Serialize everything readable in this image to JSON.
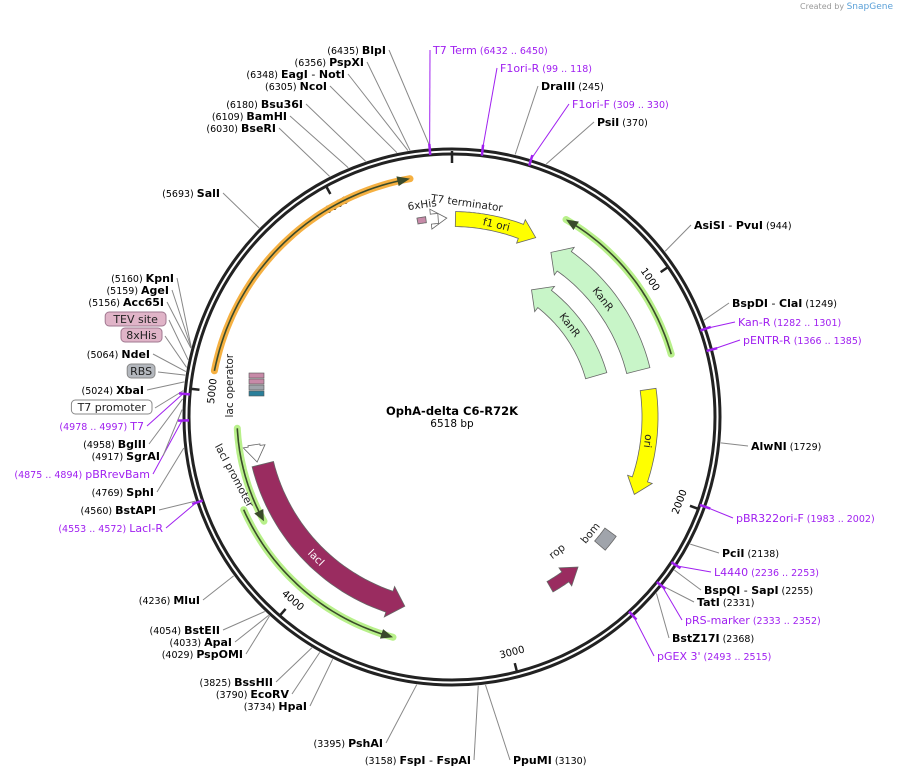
{
  "credit": {
    "prefix": "Created by",
    "brand": "SnapGene"
  },
  "plasmid": {
    "name": "OphA-delta C6-R72K",
    "length_label": "6518 bp",
    "length_bp": 6518
  },
  "colors": {
    "backbone": "#222222",
    "primer": "#a020f0",
    "orange": "#f5b041",
    "green_hl": "#b8f08a",
    "yellow": "#ffff00",
    "kanr": "#c8f5c8",
    "maroon": "#9a2c60",
    "grey": "#a0a4ab"
  },
  "ticks": [
    "1000",
    "2000",
    "3000",
    "4000",
    "5000",
    "6000"
  ],
  "labels": [
    {
      "kind": "site",
      "names": [
        "BlpI"
      ],
      "pos": "(6435)",
      "bp": 6435
    },
    {
      "kind": "primer",
      "name": "T7 Term",
      "range": "(6432 .. 6450)",
      "bp": 6432
    },
    {
      "kind": "site",
      "names": [
        "PspXI"
      ],
      "pos": "(6356)",
      "bp": 6356
    },
    {
      "kind": "site",
      "names": [
        "EagI",
        "NotI"
      ],
      "pos": "(6348)",
      "bp": 6348
    },
    {
      "kind": "site",
      "names": [
        "NcoI"
      ],
      "pos": "(6305)",
      "bp": 6305
    },
    {
      "kind": "primer",
      "name": "F1ori-R",
      "range": "(99 .. 118)",
      "bp": 118
    },
    {
      "kind": "site",
      "names": [
        "DraIII"
      ],
      "pos": "(245)",
      "bp": 245
    },
    {
      "kind": "primer",
      "name": "F1ori-F",
      "range": "(309 .. 330)",
      "bp": 309
    },
    {
      "kind": "site",
      "names": [
        "PsiI"
      ],
      "pos": "(370)",
      "bp": 370
    },
    {
      "kind": "site",
      "names": [
        "Bsu36I"
      ],
      "pos": "(6180)",
      "bp": 6180
    },
    {
      "kind": "site",
      "names": [
        "BamHI"
      ],
      "pos": "(6109)",
      "bp": 6109
    },
    {
      "kind": "site",
      "names": [
        "BseRI"
      ],
      "pos": "(6030)",
      "bp": 6030
    },
    {
      "kind": "site",
      "names": [
        "SalI"
      ],
      "pos": "(5693)",
      "bp": 5693
    },
    {
      "kind": "site",
      "names": [
        "AsiSI",
        "PvuI"
      ],
      "pos": "(944)",
      "bp": 944
    },
    {
      "kind": "site",
      "names": [
        "BspDI",
        "ClaI"
      ],
      "pos": "(1249)",
      "bp": 1249
    },
    {
      "kind": "primer",
      "name": "Kan-R",
      "range": "(1282 .. 1301)",
      "bp": 1282
    },
    {
      "kind": "primer",
      "name": "pENTR-R",
      "range": "(1366 .. 1385)",
      "bp": 1366
    },
    {
      "kind": "site",
      "names": [
        "AlwNI"
      ],
      "pos": "(1729)",
      "bp": 1729
    },
    {
      "kind": "primer",
      "name": "pBR322ori-F",
      "range": "(1983 .. 2002)",
      "bp": 1983
    },
    {
      "kind": "site",
      "names": [
        "PciI"
      ],
      "pos": "(2138)",
      "bp": 2138
    },
    {
      "kind": "primer",
      "name": "L4440",
      "range": "(2236 .. 2253)",
      "bp": 2236
    },
    {
      "kind": "site",
      "names": [
        "BspQI",
        "SapI"
      ],
      "pos": "(2255)",
      "bp": 2255
    },
    {
      "kind": "site",
      "names": [
        "TatI"
      ],
      "pos": "(2331)",
      "bp": 2331
    },
    {
      "kind": "primer",
      "name": "pRS-marker",
      "range": "(2333 .. 2352)",
      "bp": 2333
    },
    {
      "kind": "site",
      "names": [
        "BstZ17I"
      ],
      "pos": "(2368)",
      "bp": 2368
    },
    {
      "kind": "primer",
      "name": "pGEX 3'",
      "range": "(2493 .. 2515)",
      "bp": 2493
    },
    {
      "kind": "site",
      "names": [
        "PpuMI"
      ],
      "pos": "(3130)",
      "bp": 3130
    },
    {
      "kind": "site",
      "names": [
        "FspI",
        "FspAI"
      ],
      "pos": "(3158)",
      "bp": 3158
    },
    {
      "kind": "site",
      "names": [
        "PshAI"
      ],
      "pos": "(3395)",
      "bp": 3395
    },
    {
      "kind": "site",
      "names": [
        "HpaI"
      ],
      "pos": "(3734)",
      "bp": 3734
    },
    {
      "kind": "site",
      "names": [
        "EcoRV"
      ],
      "pos": "(3790)",
      "bp": 3790
    },
    {
      "kind": "site",
      "names": [
        "BssHII"
      ],
      "pos": "(3825)",
      "bp": 3825
    },
    {
      "kind": "site",
      "names": [
        "PspOMI"
      ],
      "pos": "(4029)",
      "bp": 4029
    },
    {
      "kind": "site",
      "names": [
        "ApaI"
      ],
      "pos": "(4033)",
      "bp": 4033
    },
    {
      "kind": "site",
      "names": [
        "BstEII"
      ],
      "pos": "(4054)",
      "bp": 4054
    },
    {
      "kind": "site",
      "names": [
        "MluI"
      ],
      "pos": "(4236)",
      "bp": 4236
    },
    {
      "kind": "primer",
      "name": "LacI-R",
      "range": "(4553 .. 4572)",
      "bp": 4553
    },
    {
      "kind": "site",
      "names": [
        "BstAPI"
      ],
      "pos": "(4560)",
      "bp": 4560
    },
    {
      "kind": "site",
      "names": [
        "SphI"
      ],
      "pos": "(4769)",
      "bp": 4769
    },
    {
      "kind": "primer",
      "name": "pBRrevBam",
      "range": "(4875 .. 4894)",
      "bp": 4875
    },
    {
      "kind": "site",
      "names": [
        "SgrAI"
      ],
      "pos": "(4917)",
      "bp": 4917
    },
    {
      "kind": "site",
      "names": [
        "BglII"
      ],
      "pos": "(4958)",
      "bp": 4958
    },
    {
      "kind": "primer",
      "name": "T7",
      "range": "(4978 .. 4997)",
      "bp": 4978
    },
    {
      "kind": "box",
      "name": "T7 promoter",
      "style": "white",
      "bp": 4990
    },
    {
      "kind": "site",
      "names": [
        "XbaI"
      ],
      "pos": "(5024)",
      "bp": 5024
    },
    {
      "kind": "box",
      "name": "RBS",
      "style": "grey",
      "bp": 5050
    },
    {
      "kind": "site",
      "names": [
        "NdeI"
      ],
      "pos": "(5064)",
      "bp": 5064
    },
    {
      "kind": "box",
      "name": "8xHis",
      "style": "pink",
      "bp": 5080
    },
    {
      "kind": "box",
      "name": "TEV site",
      "style": "pink",
      "bp": 5110
    },
    {
      "kind": "site",
      "names": [
        "Acc65I"
      ],
      "pos": "(5156)",
      "bp": 5156
    },
    {
      "kind": "site",
      "names": [
        "AgeI"
      ],
      "pos": "(5159)",
      "bp": 5159
    },
    {
      "kind": "site",
      "names": [
        "KpnI"
      ],
      "pos": "(5160)",
      "bp": 5160
    }
  ],
  "features": [
    {
      "name": "f1 ori",
      "color": "#ffff00"
    },
    {
      "name": "KanR",
      "color": "#c8f5c8"
    },
    {
      "name": "KanR",
      "color": "#c8f5c8"
    },
    {
      "name": "ori",
      "color": "#ffff00"
    },
    {
      "name": "bom",
      "color": "#a0a4ab"
    },
    {
      "name": "rop",
      "color": "#9a2c60"
    },
    {
      "name": "lacI",
      "color": "#9a2c60"
    },
    {
      "name": "lacI promoter",
      "color": "#ffffff"
    },
    {
      "name": "lac operator",
      "color": "#ffffff"
    },
    {
      "name": "6xHis",
      "color": "#c78aa8"
    },
    {
      "name": "T7 terminator",
      "color": "#ffffff"
    }
  ]
}
